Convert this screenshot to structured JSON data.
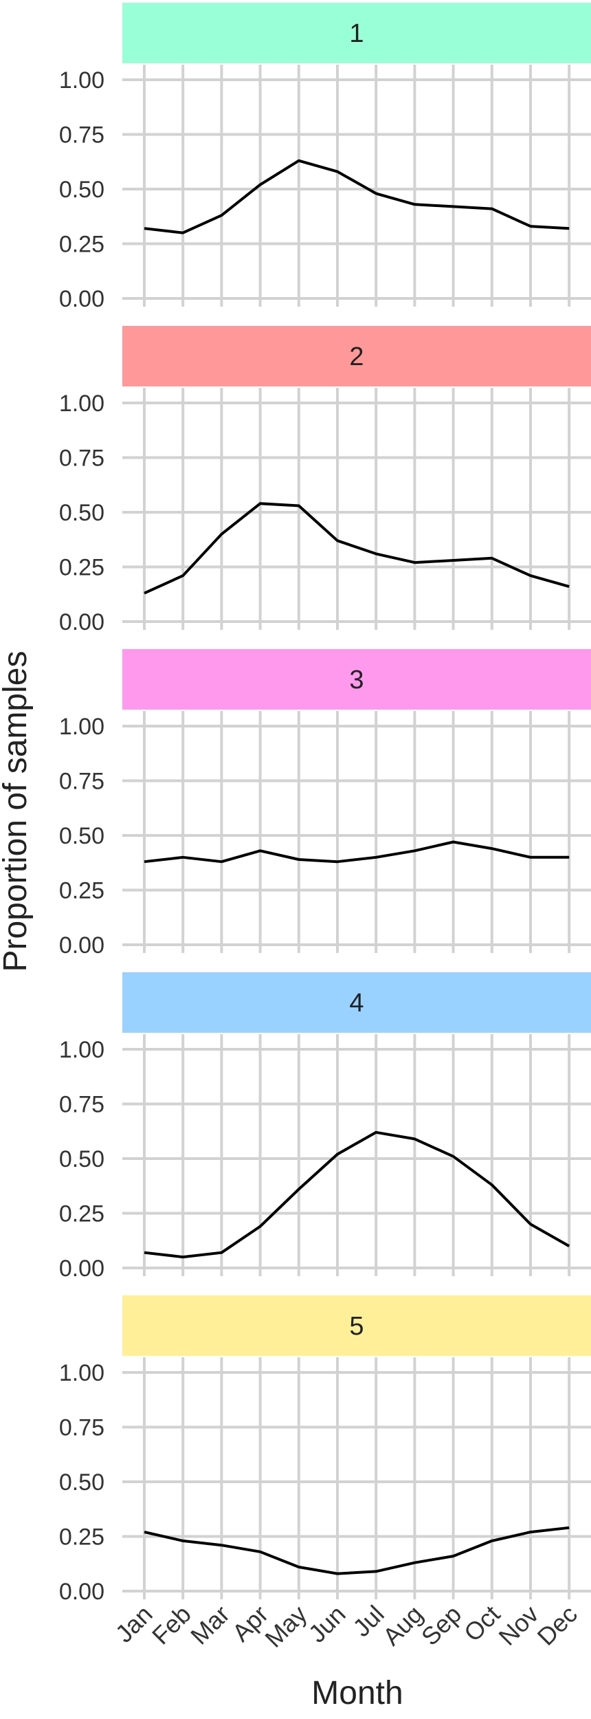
{
  "chart_data": {
    "type": "line",
    "xlabel": "Month",
    "ylabel": "Proportion of samples",
    "ylim": [
      0,
      1
    ],
    "y_ticks": [
      "0.00",
      "0.25",
      "0.50",
      "0.75",
      "1.00"
    ],
    "categories": [
      "Jan",
      "Feb",
      "Mar",
      "Apr",
      "May",
      "Jun",
      "Jul",
      "Aug",
      "Sep",
      "Oct",
      "Nov",
      "Dec"
    ],
    "grid": true,
    "panels": [
      {
        "strip": "1",
        "strip_color": "#99FFD6",
        "values": [
          0.32,
          0.3,
          0.38,
          0.52,
          0.63,
          0.58,
          0.48,
          0.43,
          0.42,
          0.41,
          0.33,
          0.32
        ]
      },
      {
        "strip": "2",
        "strip_color": "#FF9999",
        "values": [
          0.13,
          0.21,
          0.4,
          0.54,
          0.53,
          0.37,
          0.31,
          0.27,
          0.28,
          0.29,
          0.21,
          0.16
        ]
      },
      {
        "strip": "3",
        "strip_color": "#FF99EE",
        "values": [
          0.38,
          0.4,
          0.38,
          0.43,
          0.39,
          0.38,
          0.4,
          0.43,
          0.47,
          0.44,
          0.4,
          0.4
        ]
      },
      {
        "strip": "4",
        "strip_color": "#99D1FF",
        "values": [
          0.07,
          0.05,
          0.07,
          0.19,
          0.36,
          0.52,
          0.62,
          0.59,
          0.51,
          0.38,
          0.2,
          0.1
        ]
      },
      {
        "strip": "5",
        "strip_color": "#FFEF99",
        "values": [
          0.27,
          0.23,
          0.21,
          0.18,
          0.11,
          0.08,
          0.09,
          0.13,
          0.16,
          0.23,
          0.27,
          0.29
        ]
      }
    ]
  }
}
